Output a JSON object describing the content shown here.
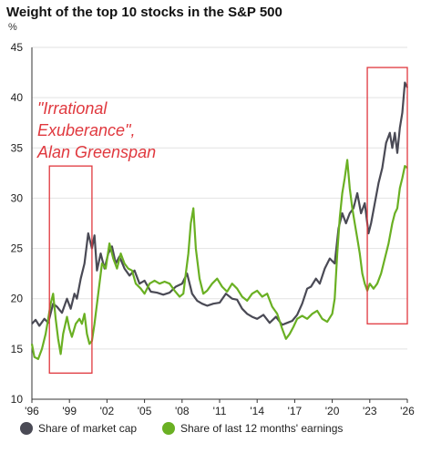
{
  "chart_data": {
    "type": "line",
    "title": "Weight of the top 10 stocks in the S&P 500",
    "xlabel": "",
    "ylabel": "%",
    "xlim": [
      1996,
      2026
    ],
    "ylim": [
      10,
      45
    ],
    "yticks": [
      10,
      15,
      20,
      25,
      30,
      35,
      40,
      45
    ],
    "xticks": [
      "'96",
      "'99",
      "'02",
      "'05",
      "'08",
      "'11",
      "'14",
      "'17",
      "'20",
      "'23",
      "'26"
    ],
    "grid": true,
    "legend_position": "bottom",
    "series": [
      {
        "name": "Share of market cap",
        "color": "#4a4a55",
        "points": [
          [
            1996.0,
            17.5
          ],
          [
            1996.3,
            17.9
          ],
          [
            1996.6,
            17.3
          ],
          [
            1997.0,
            18.0
          ],
          [
            1997.3,
            17.6
          ],
          [
            1997.7,
            19.5
          ],
          [
            1998.0,
            19.2
          ],
          [
            1998.4,
            18.6
          ],
          [
            1998.8,
            20.0
          ],
          [
            1999.1,
            19.0
          ],
          [
            1999.4,
            20.5
          ],
          [
            1999.6,
            20.0
          ],
          [
            1999.9,
            22.0
          ],
          [
            2000.2,
            23.5
          ],
          [
            2000.5,
            26.5
          ],
          [
            2000.8,
            25.0
          ],
          [
            2001.0,
            26.3
          ],
          [
            2001.2,
            22.8
          ],
          [
            2001.5,
            24.5
          ],
          [
            2001.8,
            23.0
          ],
          [
            2002.1,
            24.5
          ],
          [
            2002.4,
            25.2
          ],
          [
            2002.7,
            23.5
          ],
          [
            2003.0,
            24.2
          ],
          [
            2003.4,
            23.0
          ],
          [
            2003.8,
            22.3
          ],
          [
            2004.2,
            22.8
          ],
          [
            2004.6,
            21.5
          ],
          [
            2005.0,
            21.8
          ],
          [
            2005.5,
            20.7
          ],
          [
            2006.0,
            20.6
          ],
          [
            2006.5,
            20.4
          ],
          [
            2007.0,
            20.6
          ],
          [
            2007.5,
            21.2
          ],
          [
            2008.0,
            21.5
          ],
          [
            2008.4,
            22.5
          ],
          [
            2008.8,
            20.5
          ],
          [
            2009.2,
            19.8
          ],
          [
            2009.6,
            19.5
          ],
          [
            2010.0,
            19.3
          ],
          [
            2010.5,
            19.5
          ],
          [
            2011.0,
            19.6
          ],
          [
            2011.5,
            20.5
          ],
          [
            2012.0,
            20.0
          ],
          [
            2012.4,
            19.9
          ],
          [
            2012.8,
            19.0
          ],
          [
            2013.2,
            18.5
          ],
          [
            2013.6,
            18.2
          ],
          [
            2014.0,
            18.0
          ],
          [
            2014.5,
            18.4
          ],
          [
            2015.0,
            17.6
          ],
          [
            2015.5,
            18.2
          ],
          [
            2016.0,
            17.4
          ],
          [
            2016.4,
            17.6
          ],
          [
            2016.8,
            17.8
          ],
          [
            2017.2,
            18.4
          ],
          [
            2017.6,
            19.5
          ],
          [
            2018.0,
            21.0
          ],
          [
            2018.3,
            21.2
          ],
          [
            2018.7,
            22.0
          ],
          [
            2019.0,
            21.5
          ],
          [
            2019.4,
            23.0
          ],
          [
            2019.8,
            24.0
          ],
          [
            2020.2,
            23.5
          ],
          [
            2020.5,
            27.0
          ],
          [
            2020.8,
            28.5
          ],
          [
            2021.1,
            27.5
          ],
          [
            2021.4,
            28.5
          ],
          [
            2021.7,
            29.0
          ],
          [
            2022.0,
            30.5
          ],
          [
            2022.3,
            28.5
          ],
          [
            2022.6,
            29.5
          ],
          [
            2022.9,
            26.5
          ],
          [
            2023.1,
            27.5
          ],
          [
            2023.4,
            29.5
          ],
          [
            2023.7,
            31.5
          ],
          [
            2024.0,
            33.0
          ],
          [
            2024.3,
            35.5
          ],
          [
            2024.6,
            36.5
          ],
          [
            2024.8,
            35.0
          ],
          [
            2025.0,
            36.5
          ],
          [
            2025.2,
            34.5
          ],
          [
            2025.4,
            37.0
          ],
          [
            2025.6,
            38.5
          ],
          [
            2025.8,
            41.5
          ],
          [
            2026.0,
            41.0
          ]
        ]
      },
      {
        "name": "Share of last 12 months' earnings",
        "color": "#6ab023",
        "points": [
          [
            1996.0,
            15.5
          ],
          [
            1996.2,
            14.2
          ],
          [
            1996.5,
            14.0
          ],
          [
            1996.8,
            15.0
          ],
          [
            1997.1,
            16.5
          ],
          [
            1997.3,
            18.0
          ],
          [
            1997.5,
            19.5
          ],
          [
            1997.7,
            20.5
          ],
          [
            1997.9,
            18.0
          ],
          [
            1998.1,
            16.0
          ],
          [
            1998.3,
            14.5
          ],
          [
            1998.5,
            16.5
          ],
          [
            1998.8,
            18.2
          ],
          [
            1999.0,
            17.0
          ],
          [
            1999.2,
            16.2
          ],
          [
            1999.5,
            17.5
          ],
          [
            1999.8,
            18.0
          ],
          [
            2000.0,
            17.5
          ],
          [
            2000.2,
            18.5
          ],
          [
            2000.4,
            16.5
          ],
          [
            2000.6,
            15.5
          ],
          [
            2000.8,
            15.8
          ],
          [
            2001.0,
            17.5
          ],
          [
            2001.3,
            20.5
          ],
          [
            2001.6,
            23.5
          ],
          [
            2001.9,
            23.0
          ],
          [
            2002.2,
            25.5
          ],
          [
            2002.5,
            24.0
          ],
          [
            2002.8,
            23.0
          ],
          [
            2003.1,
            24.5
          ],
          [
            2003.4,
            23.5
          ],
          [
            2003.7,
            23.0
          ],
          [
            2004.0,
            22.8
          ],
          [
            2004.3,
            21.5
          ],
          [
            2004.7,
            21.0
          ],
          [
            2005.0,
            20.5
          ],
          [
            2005.4,
            21.5
          ],
          [
            2005.8,
            21.8
          ],
          [
            2006.2,
            21.5
          ],
          [
            2006.6,
            21.7
          ],
          [
            2007.0,
            21.5
          ],
          [
            2007.4,
            20.8
          ],
          [
            2007.8,
            20.2
          ],
          [
            2008.1,
            20.5
          ],
          [
            2008.3,
            22.5
          ],
          [
            2008.5,
            24.5
          ],
          [
            2008.7,
            27.5
          ],
          [
            2008.9,
            29.0
          ],
          [
            2009.1,
            25.0
          ],
          [
            2009.4,
            22.0
          ],
          [
            2009.7,
            20.5
          ],
          [
            2010.0,
            20.8
          ],
          [
            2010.4,
            21.5
          ],
          [
            2010.8,
            22.0
          ],
          [
            2011.2,
            21.2
          ],
          [
            2011.6,
            20.7
          ],
          [
            2012.0,
            21.5
          ],
          [
            2012.4,
            21.0
          ],
          [
            2012.8,
            20.2
          ],
          [
            2013.2,
            19.8
          ],
          [
            2013.6,
            20.5
          ],
          [
            2014.0,
            20.8
          ],
          [
            2014.4,
            20.2
          ],
          [
            2014.8,
            20.5
          ],
          [
            2015.2,
            19.2
          ],
          [
            2015.6,
            18.5
          ],
          [
            2016.0,
            17.0
          ],
          [
            2016.3,
            16.0
          ],
          [
            2016.6,
            16.5
          ],
          [
            2016.9,
            17.2
          ],
          [
            2017.2,
            18.0
          ],
          [
            2017.6,
            18.3
          ],
          [
            2018.0,
            18.0
          ],
          [
            2018.4,
            18.5
          ],
          [
            2018.8,
            18.8
          ],
          [
            2019.2,
            18.0
          ],
          [
            2019.6,
            17.7
          ],
          [
            2020.0,
            18.5
          ],
          [
            2020.2,
            20.0
          ],
          [
            2020.4,
            24.5
          ],
          [
            2020.6,
            28.0
          ],
          [
            2020.8,
            30.5
          ],
          [
            2021.0,
            32.0
          ],
          [
            2021.2,
            33.8
          ],
          [
            2021.4,
            31.0
          ],
          [
            2021.6,
            29.0
          ],
          [
            2021.8,
            27.5
          ],
          [
            2022.0,
            26.0
          ],
          [
            2022.2,
            24.5
          ],
          [
            2022.4,
            22.5
          ],
          [
            2022.6,
            21.5
          ],
          [
            2022.8,
            20.8
          ],
          [
            2023.0,
            21.5
          ],
          [
            2023.3,
            21.0
          ],
          [
            2023.6,
            21.5
          ],
          [
            2023.9,
            22.5
          ],
          [
            2024.2,
            24.0
          ],
          [
            2024.5,
            25.5
          ],
          [
            2024.8,
            27.5
          ],
          [
            2025.0,
            28.5
          ],
          [
            2025.2,
            29.0
          ],
          [
            2025.4,
            31.0
          ],
          [
            2025.6,
            32.0
          ],
          [
            2025.8,
            33.2
          ],
          [
            2026.0,
            33.0
          ]
        ]
      }
    ],
    "annotations": [
      {
        "text_lines": [
          "\"Irrational",
          "Exuberance\",",
          "Alan Greenspan"
        ],
        "color": "#e0383e"
      }
    ],
    "highlight_boxes": [
      {
        "x0": 1997.4,
        "x1": 2000.8,
        "y0": 12.6,
        "y1": 33.2,
        "color": "#e0383e"
      },
      {
        "x0": 2022.8,
        "x1": 2026.0,
        "y0": 17.5,
        "y1": 43.0,
        "color": "#e0383e"
      }
    ]
  }
}
